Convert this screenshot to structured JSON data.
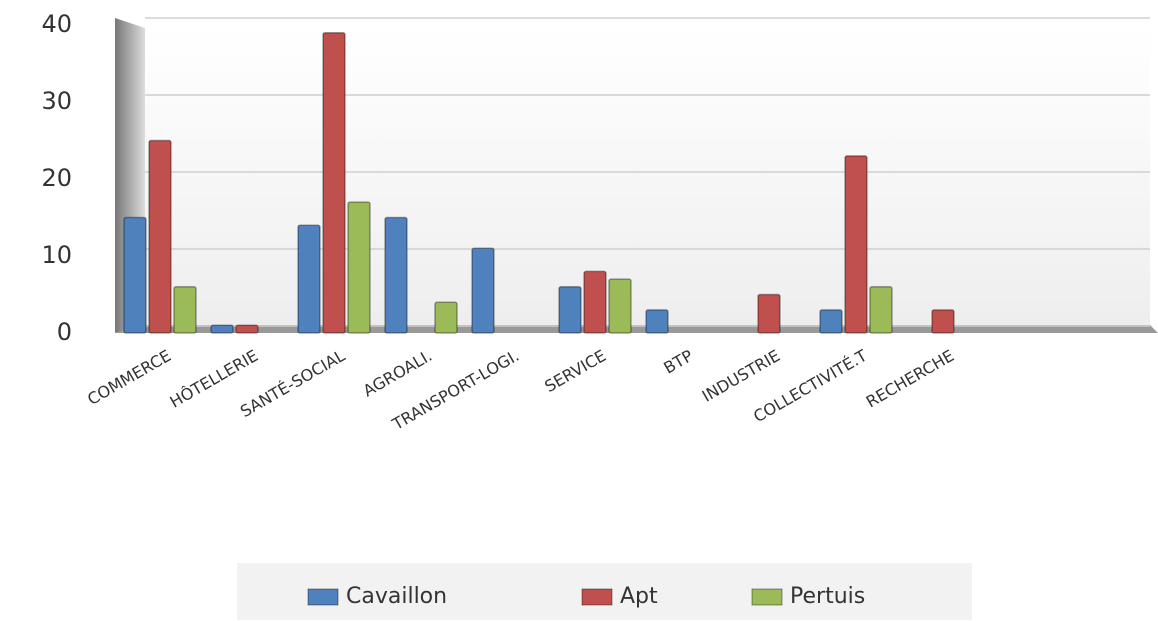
{
  "chart_data": {
    "type": "bar",
    "categories": [
      "COMMERCE",
      "HÔTELLERIE",
      "SANTÉ-SOCIAL",
      "AGROALI.",
      "TRANSPORT-LOGI.",
      "SERVICE",
      "BTP",
      "INDUSTRIE",
      "COLLECTIVITÉ.T",
      "RECHERCHE",
      null,
      null
    ],
    "series": [
      {
        "name": "Cavaillon",
        "color": "#4f81bd",
        "values": [
          15,
          1,
          14,
          15,
          11,
          6,
          3,
          null,
          3,
          null,
          null,
          null
        ]
      },
      {
        "name": "Apt",
        "color": "#c0504d",
        "values": [
          25,
          1,
          39,
          null,
          null,
          8,
          null,
          5,
          23,
          3,
          null,
          null
        ]
      },
      {
        "name": "Pertuis",
        "color": "#9bbb59",
        "values": [
          6,
          null,
          17,
          4,
          null,
          7,
          null,
          null,
          6,
          null,
          null,
          null
        ]
      }
    ],
    "ylim": [
      0,
      40
    ],
    "yticks": [
      0,
      10,
      20,
      30,
      40
    ],
    "grid": true,
    "legend": "bottom"
  }
}
